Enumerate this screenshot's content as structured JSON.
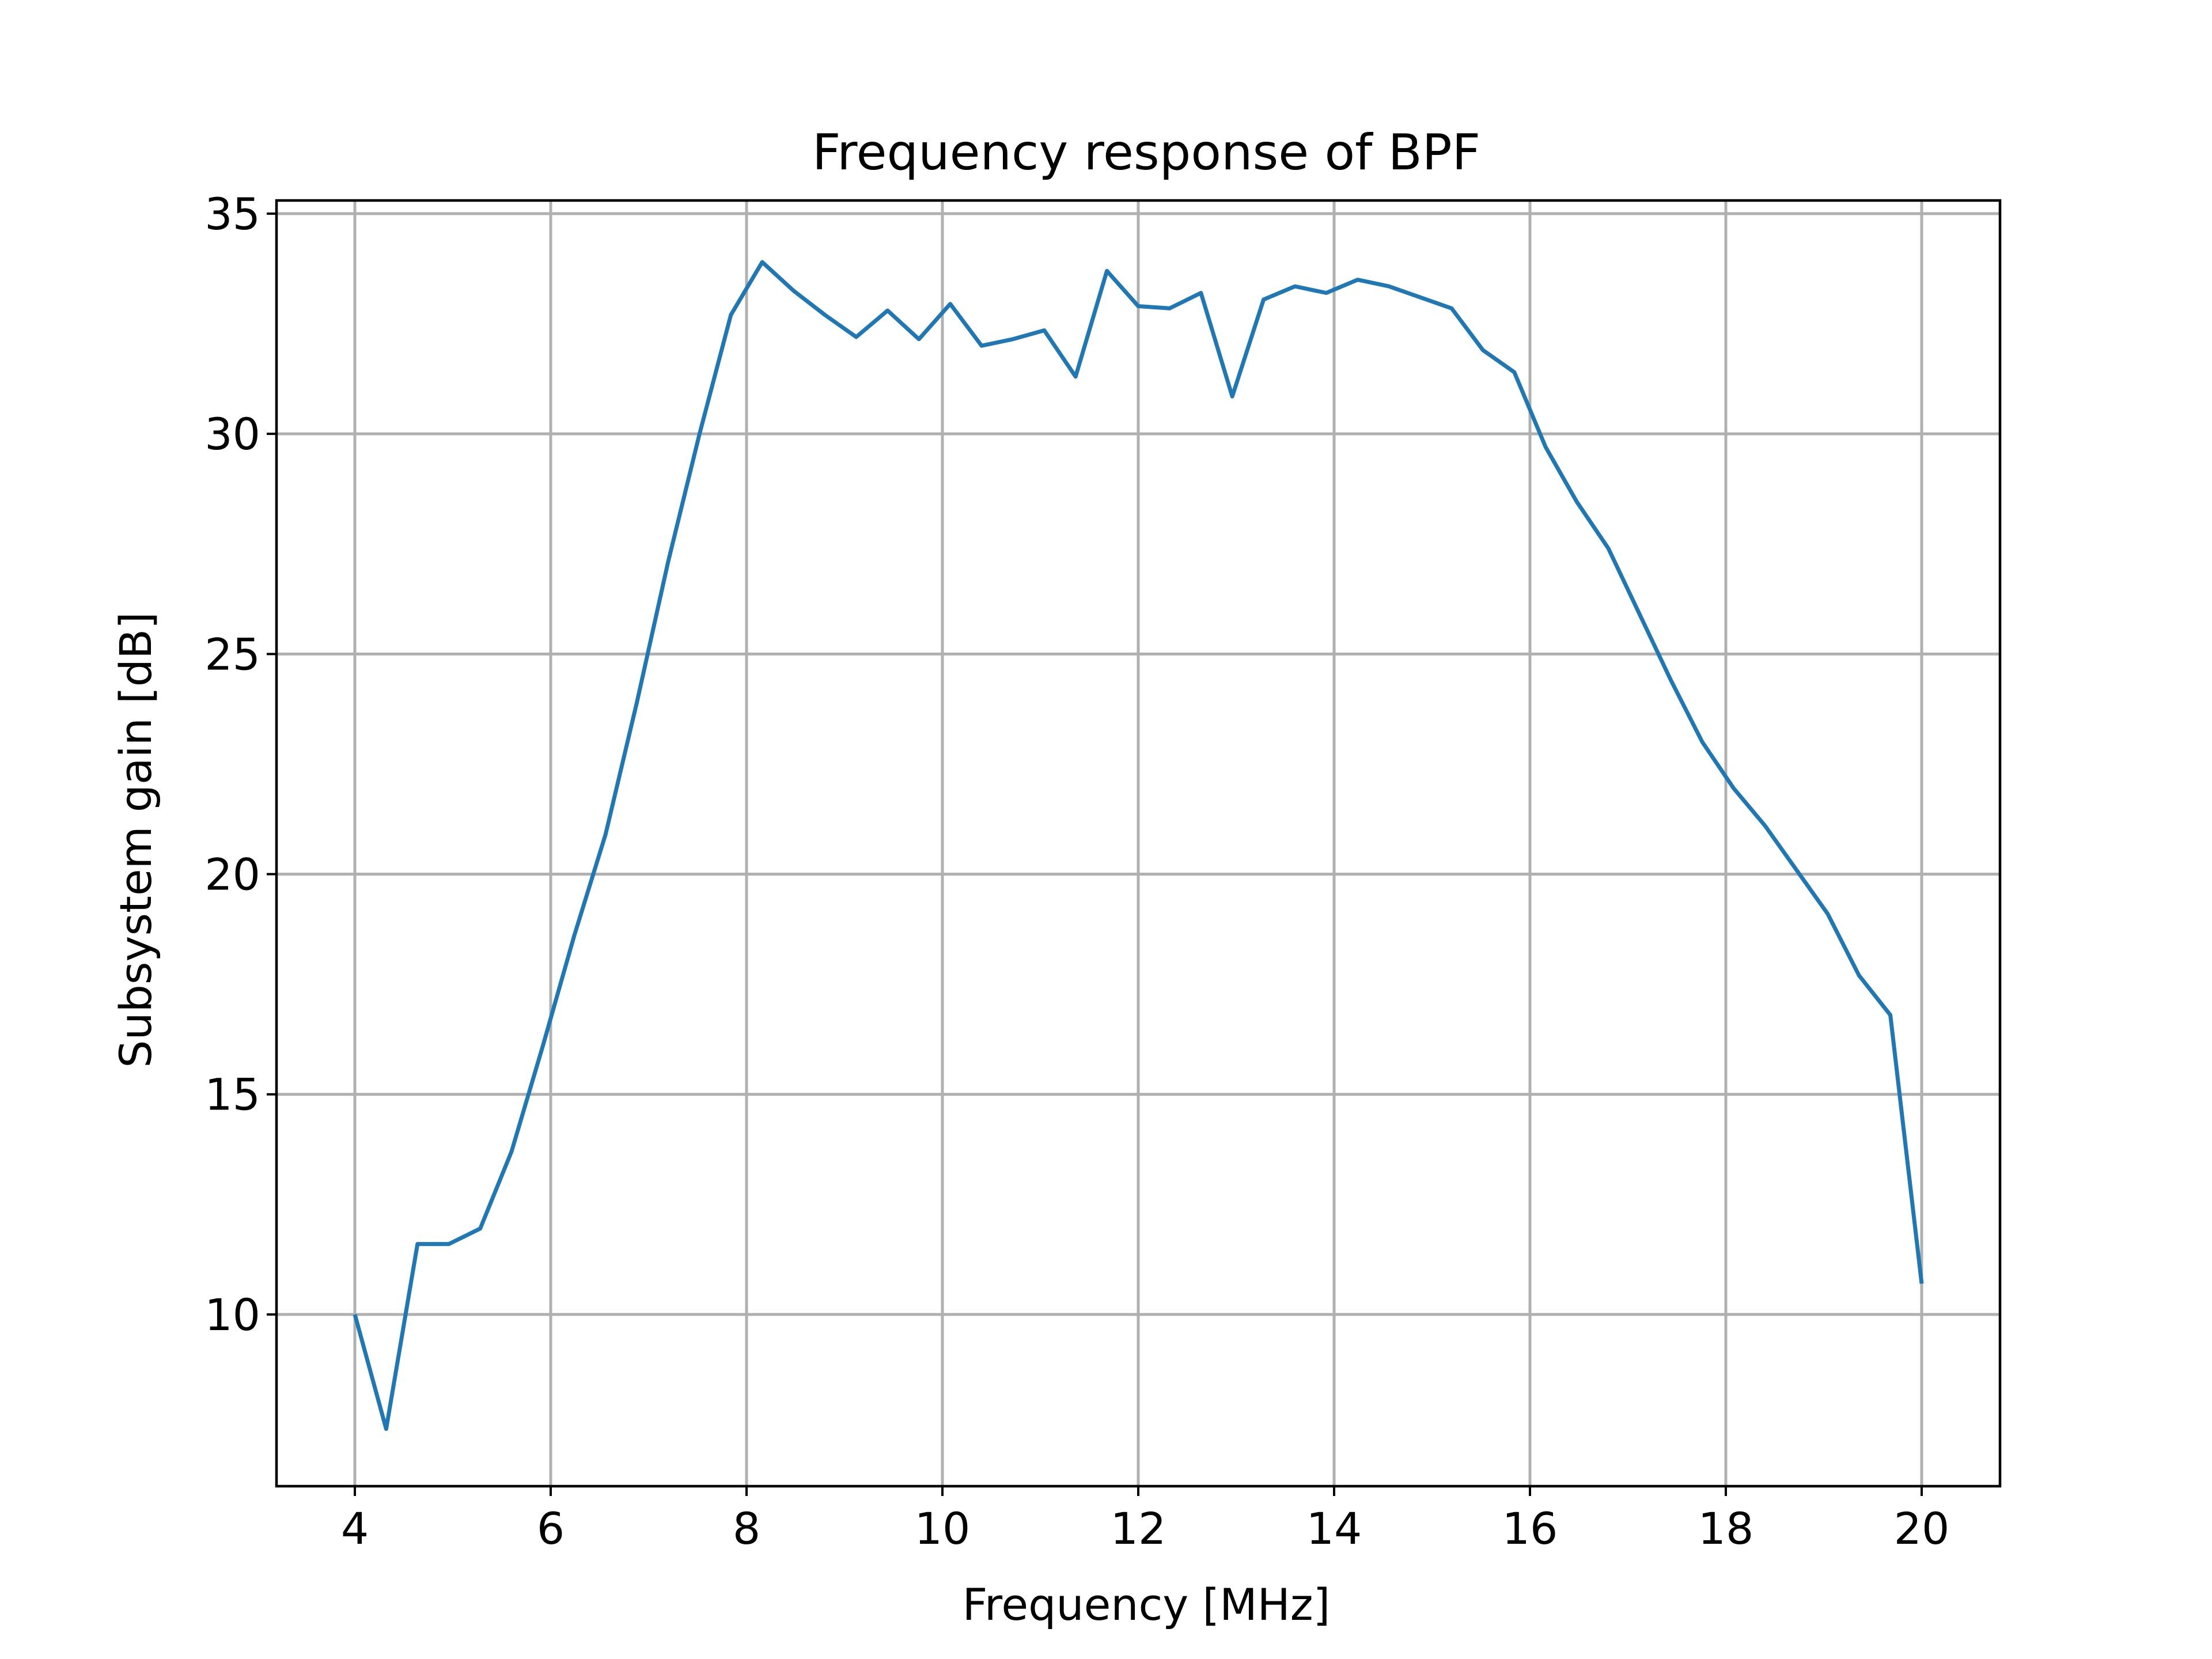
{
  "chart_data": {
    "type": "line",
    "title": "Frequency response of BPF",
    "xlabel": "Frequency [MHz]",
    "ylabel": "Subsystem gain [dB]",
    "xlim": [
      3.2,
      20.8
    ],
    "ylim": [
      6.1,
      35.3
    ],
    "xticks": [
      4,
      6,
      8,
      10,
      12,
      14,
      16,
      18,
      20
    ],
    "xtick_labels": [
      "4",
      "6",
      "8",
      "10",
      "12",
      "14",
      "16",
      "18",
      "20"
    ],
    "yticks": [
      10,
      15,
      20,
      25,
      30,
      35
    ],
    "ytick_labels": [
      "10",
      "15",
      "20",
      "25",
      "30",
      "35"
    ],
    "grid": true,
    "legend": false,
    "series": [
      {
        "color": "#1f77b4",
        "x": [
          4.0,
          4.32,
          4.64,
          4.96,
          5.28,
          5.6,
          5.92,
          6.24,
          6.56,
          6.88,
          7.2,
          7.52,
          7.84,
          8.16,
          8.48,
          8.8,
          9.12,
          9.44,
          9.76,
          10.08,
          10.4,
          10.72,
          11.04,
          11.36,
          11.68,
          12.0,
          12.32,
          12.64,
          12.96,
          13.28,
          13.6,
          13.92,
          14.24,
          14.56,
          14.88,
          15.2,
          15.52,
          15.84,
          16.16,
          16.48,
          16.8,
          17.12,
          17.44,
          17.76,
          18.08,
          18.4,
          18.72,
          19.04,
          19.36,
          19.68,
          20.0
        ],
        "y": [
          10.0,
          7.4,
          11.6,
          11.6,
          11.95,
          13.7,
          16.1,
          18.6,
          20.9,
          23.9,
          27.1,
          30.0,
          32.7,
          33.9,
          33.25,
          32.7,
          32.2,
          32.8,
          32.15,
          32.95,
          32.0,
          32.15,
          32.35,
          31.3,
          33.7,
          32.9,
          32.85,
          33.2,
          30.85,
          33.05,
          33.35,
          33.2,
          33.5,
          33.35,
          33.1,
          32.85,
          31.9,
          31.4,
          29.7,
          28.45,
          27.4,
          25.9,
          24.4,
          23.0,
          21.95,
          21.1,
          20.1,
          19.1,
          17.7,
          16.8,
          10.7
        ]
      }
    ]
  }
}
